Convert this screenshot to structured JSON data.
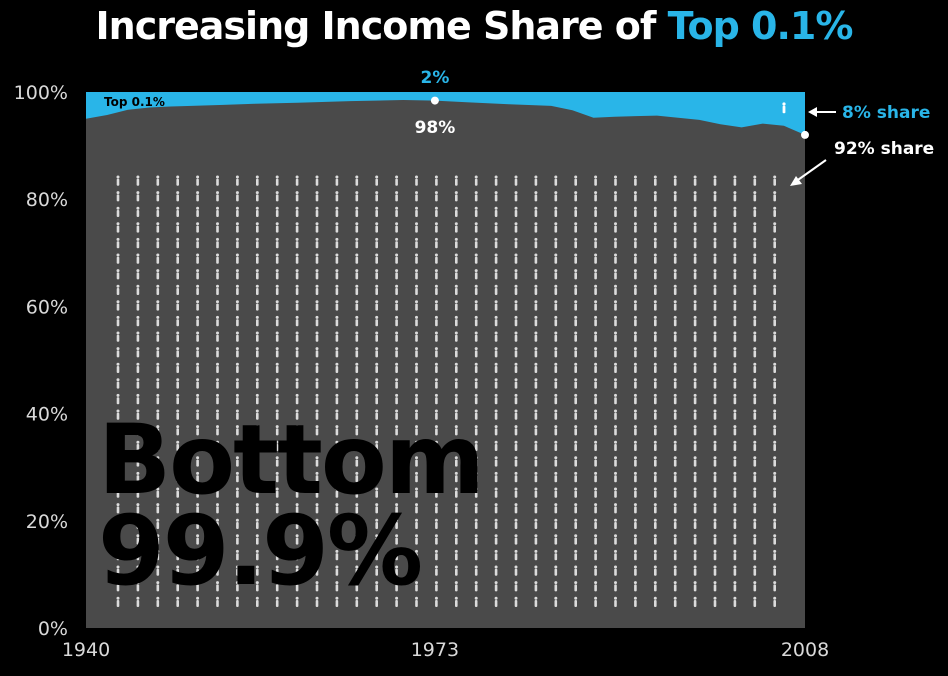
{
  "chart_data": {
    "type": "area",
    "title_main": "Increasing Income Share of ",
    "title_highlight": "Top 0.1%",
    "x": [
      1940,
      1942,
      1944,
      1946,
      1948,
      1950,
      1953,
      1956,
      1960,
      1965,
      1970,
      1973,
      1976,
      1980,
      1984,
      1986,
      1988,
      1990,
      1992,
      1994,
      1996,
      1998,
      2000,
      2002,
      2004,
      2006,
      2008
    ],
    "series": [
      {
        "name": "Top 0.1%",
        "values": [
          5.0,
          4.3,
          3.3,
          2.9,
          2.7,
          2.6,
          2.4,
          2.2,
          2.0,
          1.7,
          1.5,
          1.6,
          1.9,
          2.3,
          2.6,
          3.4,
          4.8,
          4.6,
          4.5,
          4.4,
          4.8,
          5.2,
          6.0,
          6.6,
          5.9,
          6.3,
          8.0
        ]
      },
      {
        "name": "Bottom 99.9%",
        "values": [
          95.0,
          95.7,
          96.7,
          97.1,
          97.3,
          97.4,
          97.6,
          97.8,
          98.0,
          98.3,
          98.5,
          98.4,
          98.1,
          97.7,
          97.4,
          96.6,
          95.2,
          95.4,
          95.5,
          95.6,
          95.2,
          94.8,
          94.0,
          93.4,
          94.1,
          93.7,
          92.0
        ]
      }
    ],
    "ylim": [
      0,
      100
    ],
    "xlim": [
      1940,
      2008
    ],
    "yticks": [
      "0%",
      "20%",
      "40%",
      "60%",
      "80%",
      "100%"
    ],
    "xticks": [
      "1940",
      "1973",
      "2008"
    ],
    "colors": {
      "top": "#29b5e8",
      "bottom": "#4a4a4a",
      "background": "#000000",
      "figures": "#dcdcdc"
    },
    "annotations": {
      "top_label": "Top 0.1%",
      "peak_top": "2%",
      "peak_bottom": "98%",
      "end_top": "8% share",
      "end_bottom": "92% share",
      "big_label_line1": "Bottom",
      "big_label_line2": "99.9%"
    },
    "icons": [
      "person-icon"
    ]
  }
}
